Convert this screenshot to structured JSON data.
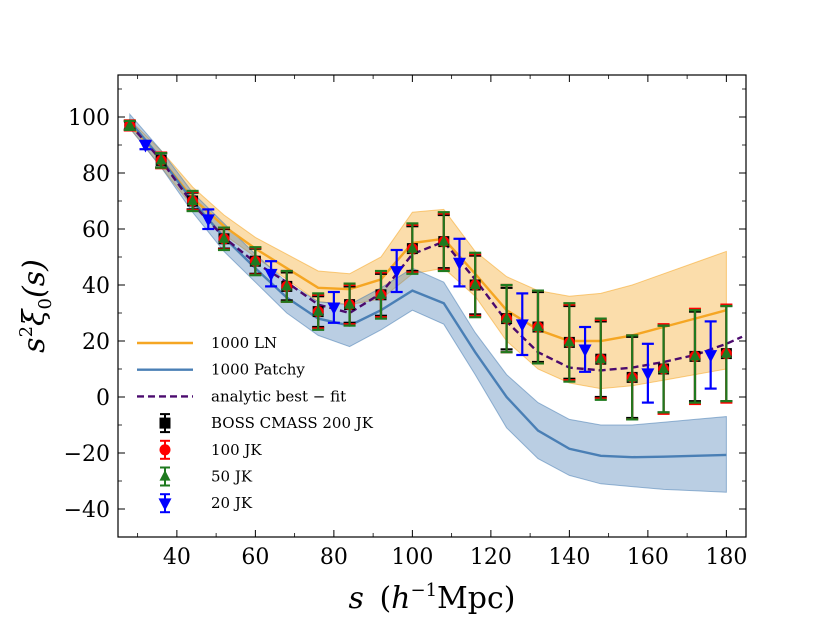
{
  "chart_data": {
    "type": "line",
    "xlabel": {
      "var": "s",
      "open": "(",
      "unit_h": "h",
      "exponent": "−1",
      "unit_rest": "Mpc",
      "close": ")"
    },
    "ylabel": {
      "var": "s",
      "sup": "2",
      "xi": "ξ",
      "sub": "0",
      "arg": "(s)"
    },
    "xlim": [
      25,
      185
    ],
    "ylim": [
      -50,
      115
    ],
    "xticks": [
      40,
      60,
      80,
      100,
      120,
      140,
      160,
      180
    ],
    "yticks": [
      -40,
      -20,
      0,
      20,
      40,
      60,
      80,
      100
    ],
    "colors": {
      "ln": "#f5a623",
      "ln_band": "#f5a623",
      "patchy": "#4a7fb5",
      "patchy_band": "#4a7fb5",
      "fit": "#4b0a6e",
      "boss": "#000000",
      "jk100": "#ff0000",
      "jk50": "#1f7a1f",
      "jk20": "#0000ff"
    },
    "legend": {
      "position": "lower-left",
      "entries": [
        {
          "label": "1000 LN",
          "kind": "line",
          "key": "ln"
        },
        {
          "label": "1000 Patchy",
          "kind": "line",
          "key": "patchy"
        },
        {
          "label": "analytic best − fit",
          "kind": "dash",
          "key": "fit"
        },
        {
          "label": "BOSS CMASS 200 JK",
          "kind": "square",
          "key": "boss"
        },
        {
          "label": "100 JK",
          "kind": "circle",
          "key": "jk100"
        },
        {
          "label": "50 JK",
          "kind": "triangle-up",
          "key": "jk50"
        },
        {
          "label": "20 JK",
          "kind": "triangle-down",
          "key": "jk20"
        }
      ]
    },
    "bands": [
      {
        "name": "1000 LN",
        "key": "ln_band",
        "x": [
          28,
          36,
          44,
          52,
          60,
          68,
          76,
          84,
          92,
          100,
          108,
          116,
          124,
          132,
          140,
          148,
          156,
          164,
          172,
          180
        ],
        "lower": [
          96,
          82,
          68,
          58,
          50,
          42,
          34,
          33,
          35,
          44,
          46,
          36,
          20,
          10,
          5,
          3,
          4,
          6,
          8,
          10
        ],
        "upper": [
          99,
          88,
          75,
          65,
          57,
          51,
          45,
          44,
          50,
          66,
          67,
          52,
          43,
          38,
          36,
          37,
          40,
          44,
          48,
          52
        ]
      },
      {
        "name": "1000 Patchy",
        "key": "patchy_band",
        "x": [
          28,
          36,
          44,
          52,
          60,
          68,
          76,
          84,
          92,
          100,
          108,
          116,
          124,
          132,
          140,
          148,
          156,
          164,
          172,
          180
        ],
        "lower": [
          96,
          82,
          66,
          52,
          41,
          30,
          22,
          18,
          24,
          31,
          26,
          8,
          -11,
          -22,
          -28,
          -31,
          -32,
          -33,
          -33.5,
          -34
        ],
        "upper": [
          101,
          88,
          73,
          62,
          51,
          41,
          34,
          33,
          39,
          46,
          41,
          23,
          8,
          -2,
          -8,
          -10,
          -10,
          -9,
          -8,
          -7
        ]
      }
    ],
    "series": [
      {
        "name": "1000 LN",
        "key": "ln",
        "style": "solid",
        "x": [
          28,
          36,
          44,
          52,
          60,
          68,
          76,
          84,
          92,
          100,
          108,
          116,
          124,
          132,
          140,
          148,
          156,
          164,
          172,
          180
        ],
        "y": [
          97.5,
          85,
          71,
          61,
          53,
          46,
          39,
          38.5,
          42,
          55,
          56.5,
          44,
          31,
          24,
          20,
          20,
          22,
          25,
          28,
          31
        ]
      },
      {
        "name": "1000 Patchy",
        "key": "patchy",
        "style": "solid",
        "x": [
          28,
          36,
          44,
          52,
          60,
          68,
          76,
          84,
          92,
          100,
          108,
          116,
          124,
          132,
          140,
          148,
          156,
          164,
          172,
          180
        ],
        "y": [
          98.5,
          85,
          70,
          57,
          46,
          35.5,
          28,
          25.5,
          31,
          38,
          33.5,
          16,
          0,
          -12,
          -18.5,
          -21,
          -21.5,
          -21.3,
          -21,
          -20.7
        ]
      },
      {
        "name": "analytic best − fit",
        "key": "fit",
        "style": "dashed",
        "x": [
          28,
          36,
          44,
          52,
          60,
          68,
          76,
          84,
          92,
          100,
          108,
          116,
          124,
          132,
          140,
          148,
          156,
          164,
          172,
          180,
          184
        ],
        "y": [
          97.5,
          84.5,
          69,
          57,
          48,
          41,
          33,
          30,
          37,
          51,
          55.5,
          42,
          27,
          16,
          10.5,
          9.5,
          10.5,
          12.5,
          15,
          19,
          21.5
        ]
      }
    ],
    "error_series": [
      {
        "name": "BOSS CMASS 200 JK",
        "key": "boss",
        "marker": "square",
        "x": [
          28,
          36,
          44,
          52,
          60,
          68,
          76,
          84,
          92,
          100,
          108,
          116,
          124,
          132,
          140,
          148,
          156,
          164,
          172,
          180
        ],
        "y": [
          97,
          84.5,
          70,
          56.5,
          48.5,
          39.5,
          30.5,
          33,
          36.5,
          53,
          55.5,
          40,
          28,
          25,
          19.5,
          13.5,
          7,
          10,
          14.5,
          15.5
        ],
        "err": [
          1.5,
          2.5,
          3,
          3.5,
          4.5,
          5,
          5.5,
          6.5,
          7.5,
          8,
          9.5,
          10.5,
          11,
          12.5,
          13,
          13.5,
          14.5,
          15.5,
          16,
          17
        ]
      },
      {
        "name": "100 JK",
        "key": "jk100",
        "marker": "circle",
        "x": [
          28,
          36,
          44,
          52,
          60,
          68,
          76,
          84,
          92,
          100,
          108,
          116,
          124,
          132,
          140,
          148,
          156,
          164,
          172,
          180
        ],
        "y": [
          97,
          84.5,
          70,
          56.5,
          48.5,
          39.5,
          30.5,
          33,
          36.5,
          53,
          55.5,
          40,
          28,
          25,
          19.5,
          13.5,
          7,
          10,
          14.5,
          15.5
        ],
        "err": [
          1.8,
          2.8,
          3.3,
          3.8,
          4.8,
          5.5,
          6,
          7,
          8,
          8.5,
          10,
          11,
          12,
          13,
          13.5,
          14,
          15,
          16,
          17,
          17.5
        ]
      },
      {
        "name": "50 JK",
        "key": "jk50",
        "marker": "triangle-up",
        "x": [
          28,
          36,
          44,
          52,
          60,
          68,
          76,
          84,
          92,
          100,
          108,
          116,
          124,
          132,
          140,
          148,
          156,
          164,
          172,
          180
        ],
        "y": [
          97,
          84.5,
          70,
          56.5,
          48.5,
          39.5,
          30.5,
          33,
          36.5,
          53,
          55.5,
          40,
          28,
          25,
          19.5,
          13.5,
          7,
          10,
          14.5,
          15.5
        ],
        "err": [
          1.6,
          2.6,
          3.6,
          4,
          5,
          5.5,
          6.5,
          7.5,
          8.5,
          9,
          10.5,
          11.5,
          12,
          13,
          14,
          14.5,
          15,
          15.5,
          16.5,
          17
        ]
      },
      {
        "name": "20 JK",
        "key": "jk20",
        "marker": "triangle-down",
        "x": [
          32,
          48,
          64,
          80,
          96,
          112,
          128,
          144,
          160,
          176
        ],
        "y": [
          90,
          63.5,
          44,
          32,
          45,
          48,
          26,
          17,
          8.5,
          15
        ],
        "err": [
          1.5,
          3.5,
          4.5,
          5.5,
          7.5,
          8.5,
          11,
          8,
          10.5,
          12
        ]
      }
    ]
  }
}
